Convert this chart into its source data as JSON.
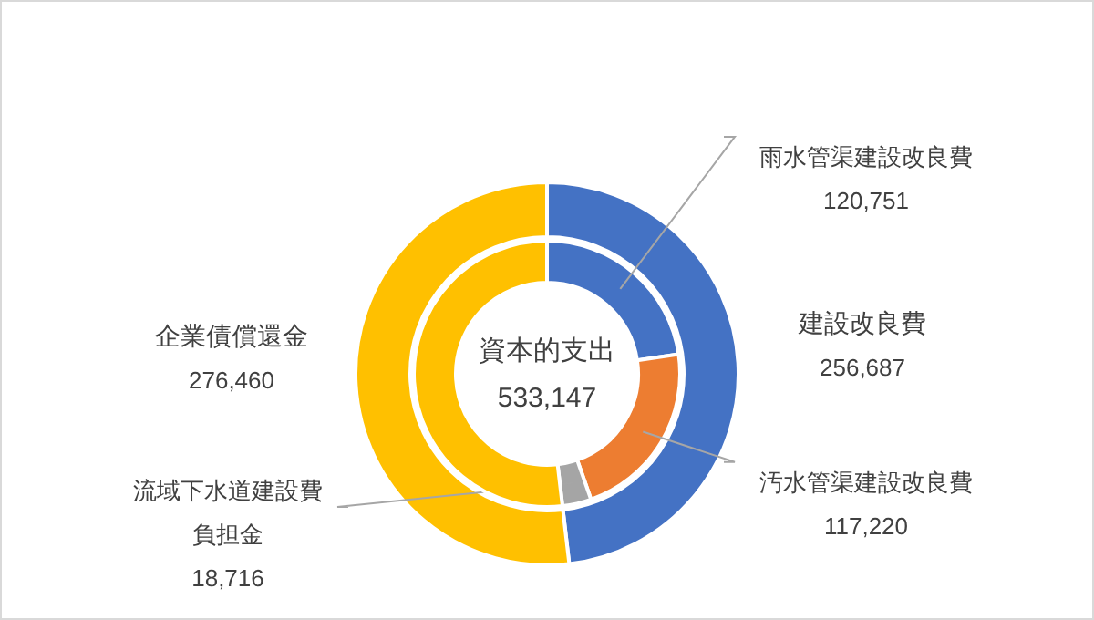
{
  "chart_data": [
    {
      "type": "donut",
      "title": "資本的支出",
      "annotations": [
        "533,147"
      ],
      "categories": [
        "建設改良費",
        "企業債償還金"
      ],
      "values": [
        256687,
        276460
      ],
      "colors": [
        "#4472c4",
        "#ffc000"
      ],
      "value_labels": [
        "256,687",
        "276,460"
      ]
    },
    {
      "type": "donut",
      "categories": [
        "雨水管渠建設改良費",
        "汚水管渠建設改良費",
        "流域下水道建設費負担金",
        null
      ],
      "values": [
        120751,
        117220,
        18716,
        276460
      ],
      "colors": [
        "#4472c4",
        "#ed7d31",
        "#a5a5a5",
        "#ffc000"
      ],
      "value_labels": [
        "120,751",
        "117,220",
        "18,716",
        null
      ]
    }
  ]
}
